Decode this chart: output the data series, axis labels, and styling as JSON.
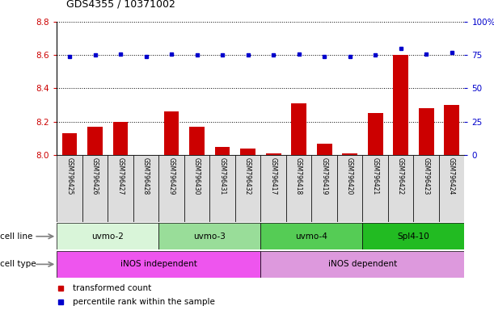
{
  "title": "GDS4355 / 10371002",
  "samples": [
    "GSM796425",
    "GSM796426",
    "GSM796427",
    "GSM796428",
    "GSM796429",
    "GSM796430",
    "GSM796431",
    "GSM796432",
    "GSM796417",
    "GSM796418",
    "GSM796419",
    "GSM796420",
    "GSM796421",
    "GSM796422",
    "GSM796423",
    "GSM796424"
  ],
  "transformed_count": [
    8.13,
    8.17,
    8.2,
    8.0,
    8.26,
    8.17,
    8.05,
    8.04,
    8.01,
    8.31,
    8.07,
    8.01,
    8.25,
    8.6,
    8.28,
    8.3
  ],
  "percentile_rank": [
    74,
    75,
    76,
    74,
    76,
    75,
    75,
    75,
    75,
    76,
    74,
    74,
    75,
    80,
    76,
    77
  ],
  "ylim_left": [
    8.0,
    8.8
  ],
  "ylim_right": [
    0,
    100
  ],
  "yticks_left": [
    8.0,
    8.2,
    8.4,
    8.6,
    8.8
  ],
  "yticks_right": [
    0,
    25,
    50,
    75,
    100
  ],
  "cell_line_groups": [
    {
      "label": "uvmo-2",
      "start": 0,
      "end": 4,
      "color": "#d9f5d9"
    },
    {
      "label": "uvmo-3",
      "start": 4,
      "end": 8,
      "color": "#99dd99"
    },
    {
      "label": "uvmo-4",
      "start": 8,
      "end": 12,
      "color": "#55cc55"
    },
    {
      "label": "Spl4-10",
      "start": 12,
      "end": 16,
      "color": "#22bb22"
    }
  ],
  "cell_type_groups": [
    {
      "label": "iNOS independent",
      "start": 0,
      "end": 8,
      "color": "#ee55ee"
    },
    {
      "label": "iNOS dependent",
      "start": 8,
      "end": 16,
      "color": "#dd99dd"
    }
  ],
  "bar_color": "#cc0000",
  "dot_color": "#0000cc",
  "bg_color": "#ffffff",
  "tick_color_left": "#cc0000",
  "tick_color_right": "#0000cc",
  "xtick_bg": "#dddddd"
}
